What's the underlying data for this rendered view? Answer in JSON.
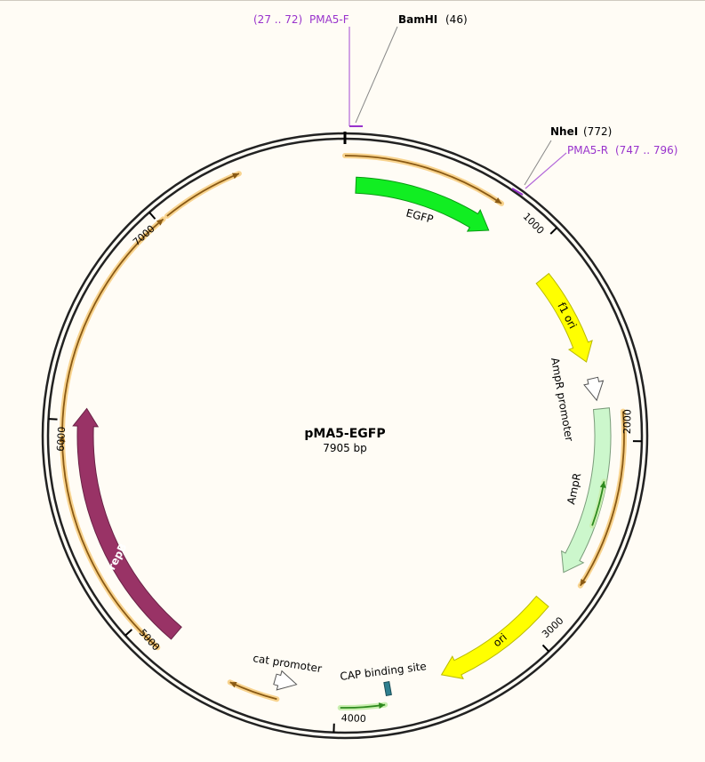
{
  "map": {
    "title": "pMA5-EGFP",
    "subtitle": "7905 bp",
    "ticks": [
      1000,
      2000,
      3000,
      4000,
      5000,
      6000,
      7000
    ],
    "primers": [
      {
        "range": "(27 .. 72)",
        "name": "PMA5-F"
      },
      {
        "name": "PMA5-R",
        "range": "(747 .. 796)"
      }
    ],
    "sites": [
      {
        "name": "BamHI",
        "position": "(46)"
      },
      {
        "name": "NheI",
        "position": "(772)"
      }
    ],
    "features": [
      "EGFP",
      "f1 ori",
      "AmpR promoter",
      "AmpR",
      "ori",
      "CAP binding site",
      "cat promoter",
      "repB"
    ]
  }
}
